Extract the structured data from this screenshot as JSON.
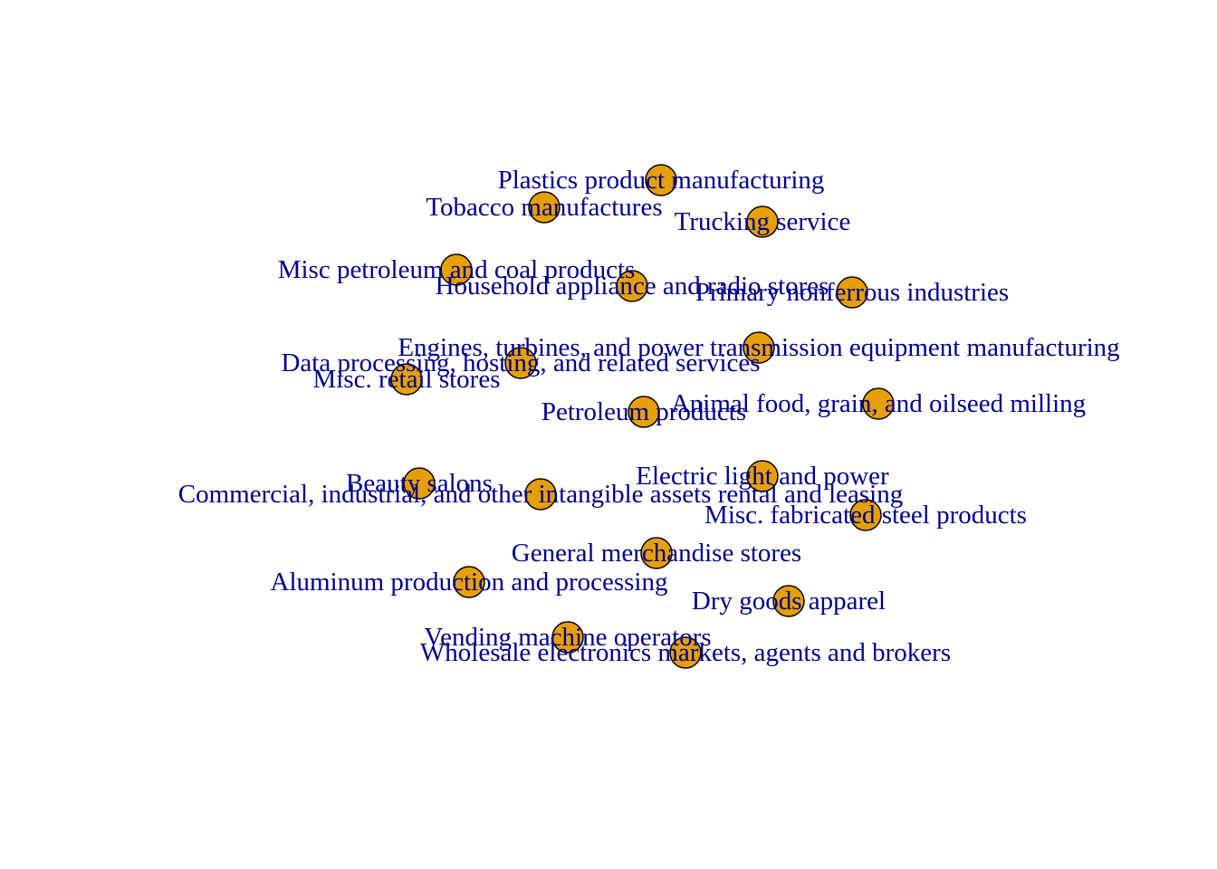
{
  "style": {
    "node_fill": "#E69F00",
    "node_stroke": "#000000",
    "label_color": "#00008B",
    "background": "#FFFFFF"
  },
  "nodes": [
    {
      "label": "Plastics product manufacturing"
    },
    {
      "label": "Tobacco manufactures"
    },
    {
      "label": "Trucking service"
    },
    {
      "label": "Misc petroleum and coal products"
    },
    {
      "label": "Household appliance and radio stores"
    },
    {
      "label": "Primary nonferrous industries"
    },
    {
      "label": "Engines, turbines, and power transmission equipment manufacturing"
    },
    {
      "label": "Data processing, hosting, and related services"
    },
    {
      "label": "Misc. retail stores"
    },
    {
      "label": "Animal food, grain, and oilseed milling"
    },
    {
      "label": "Petroleum products"
    },
    {
      "label": "Electric light and power"
    },
    {
      "label": "Beauty salons"
    },
    {
      "label": "Commercial, industrial, and other intangible assets rental and leasing"
    },
    {
      "label": "Misc. fabricated steel products"
    },
    {
      "label": "General merchandise stores"
    },
    {
      "label": "Aluminum production and processing"
    },
    {
      "label": "Dry goods apparel"
    },
    {
      "label": "Vending machine operators"
    },
    {
      "label": "Wholesale electronics markets, agents and brokers"
    }
  ]
}
